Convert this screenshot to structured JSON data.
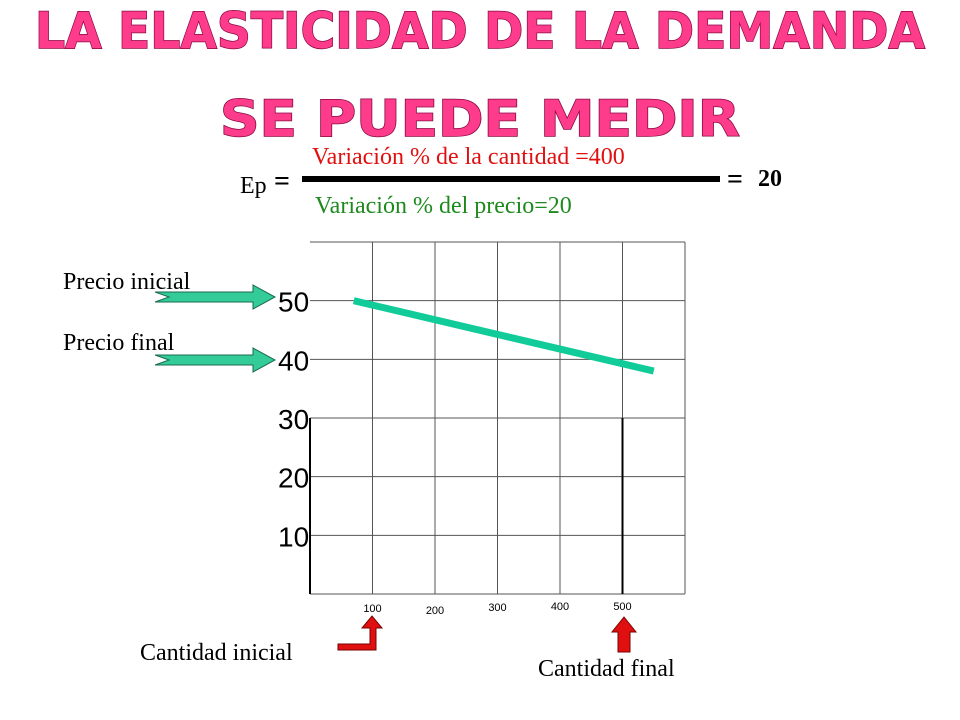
{
  "slide": {
    "title_line1": "LA ELASTICIDAD DE LA DEMANDA",
    "title_line2": "SE PUEDE MEDIR",
    "title_color": "#ff3c8c"
  },
  "formula": {
    "lhs": "Ep",
    "eq1": "=",
    "numerator": "Variación % de la cantidad =400",
    "denominator": "Variación % del precio=20",
    "eq2": "=",
    "result": "20",
    "numerator_color": "#e01010",
    "denominator_color": "#1e8a1e"
  },
  "labels": {
    "precio_inicial": "Precio inicial",
    "precio_final": "Precio final",
    "cantidad_inicial": "Cantidad inicial",
    "cantidad_final": "Cantidad final"
  },
  "colors": {
    "price_arrow": "#33cc99",
    "quantity_arrow": "#e01010",
    "demand_line": "#11cc99",
    "grid": "#000000"
  },
  "icons": {
    "price_arrows": "right-arrow-icon",
    "quantity_arrows": "up-arrow-icon"
  },
  "chart_data": {
    "type": "line",
    "title": "",
    "xlabel": "",
    "ylabel": "",
    "x_ticks": [
      "100",
      "200",
      "300",
      "400",
      "500"
    ],
    "y_ticks": [
      "10",
      "20",
      "30",
      "40",
      "50"
    ],
    "xlim": [
      0,
      600
    ],
    "ylim": [
      0,
      60
    ],
    "grid": true,
    "series": [
      {
        "x": [
          70,
          550
        ],
        "y": [
          50,
          38
        ]
      }
    ],
    "reference_lines": [
      {
        "x": 500,
        "y_from": 0,
        "y_to": 30
      }
    ]
  }
}
